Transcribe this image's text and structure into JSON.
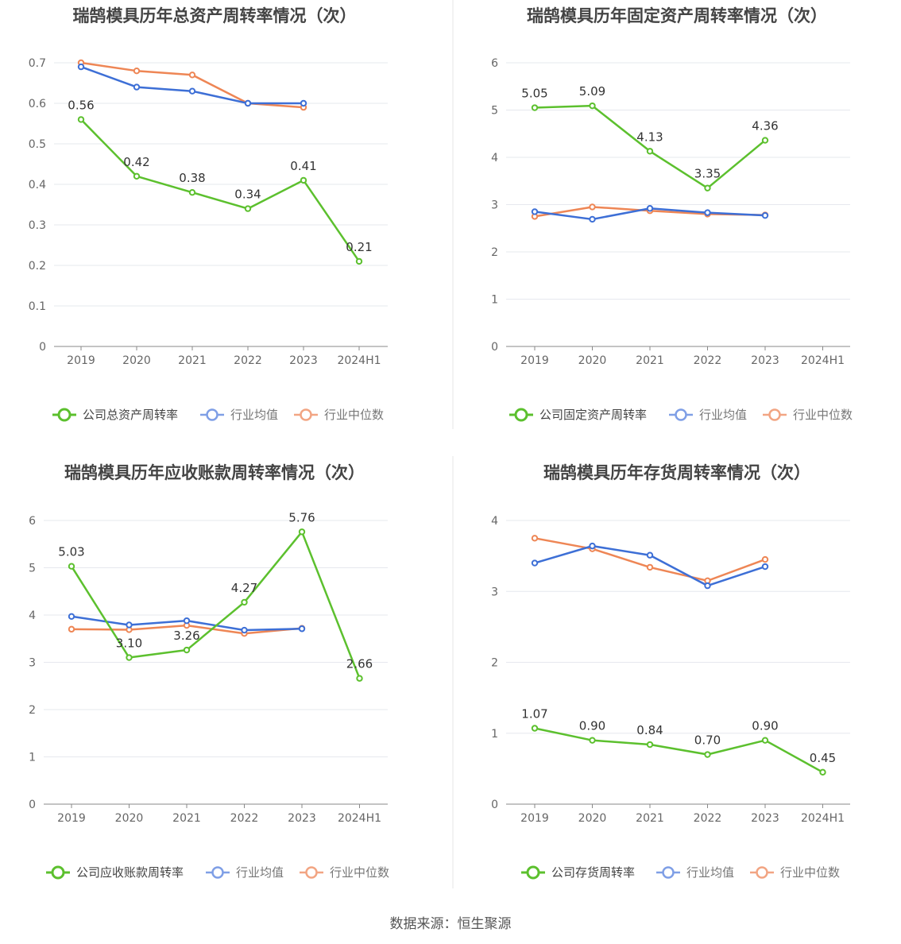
{
  "source": "数据来源：恒生聚源",
  "colors": {
    "company": "#5cc02e",
    "avg": "#3d6fd6",
    "median": "#ee8655",
    "grid": "#e6e8ee",
    "axis": "#666666",
    "text": "#333333",
    "divider": "#e6e6e6"
  },
  "chart_data": [
    {
      "type": "line",
      "title": "瑞鹄模具历年总资产周转率情况（次）",
      "categories": [
        "2019",
        "2020",
        "2021",
        "2022",
        "2023",
        "2024H1"
      ],
      "ylim": [
        0,
        0.7
      ],
      "yticks": [
        "0",
        "0.1",
        "0.2",
        "0.3",
        "0.4",
        "0.5",
        "0.6",
        "0.7"
      ],
      "series": [
        {
          "name": "公司总资产周转率",
          "values": [
            0.56,
            0.42,
            0.38,
            0.34,
            0.41,
            0.21
          ],
          "labels": [
            "0.56",
            "0.42",
            "0.38",
            "0.34",
            "0.41",
            "0.21"
          ]
        },
        {
          "name": "行业均值",
          "values": [
            0.69,
            0.64,
            0.63,
            0.6,
            0.6,
            null
          ]
        },
        {
          "name": "行业中位数",
          "values": [
            0.7,
            0.68,
            0.67,
            0.6,
            0.59,
            null
          ]
        }
      ],
      "legend": "bottom",
      "grid": true
    },
    {
      "type": "line",
      "title": "瑞鹄模具历年固定资产周转率情况（次）",
      "categories": [
        "2019",
        "2020",
        "2021",
        "2022",
        "2023",
        "2024H1"
      ],
      "ylim": [
        0,
        6
      ],
      "yticks": [
        "0",
        "1",
        "2",
        "3",
        "4",
        "5",
        "6"
      ],
      "series": [
        {
          "name": "公司固定资产周转率",
          "values": [
            5.05,
            5.09,
            4.13,
            3.35,
            4.36,
            null
          ],
          "labels": [
            "5.05",
            "5.09",
            "4.13",
            "3.35",
            "4.36",
            null
          ]
        },
        {
          "name": "行业均值",
          "values": [
            2.85,
            2.69,
            2.92,
            2.83,
            2.77,
            null
          ]
        },
        {
          "name": "行业中位数",
          "values": [
            2.75,
            2.95,
            2.87,
            2.8,
            2.78,
            null
          ]
        }
      ],
      "legend": "bottom",
      "grid": true
    },
    {
      "type": "line",
      "title": "瑞鹄模具历年应收账款周转率情况（次）",
      "categories": [
        "2019",
        "2020",
        "2021",
        "2022",
        "2023",
        "2024H1"
      ],
      "ylim": [
        0,
        6
      ],
      "yticks": [
        "0",
        "1",
        "2",
        "3",
        "4",
        "5",
        "6"
      ],
      "series": [
        {
          "name": "公司应收账款周转率",
          "values": [
            5.03,
            3.1,
            3.26,
            4.27,
            5.76,
            2.66
          ],
          "labels": [
            "5.03",
            "3.10",
            "3.26",
            "4.27",
            "5.76",
            "2.66"
          ]
        },
        {
          "name": "行业均值",
          "values": [
            3.97,
            3.79,
            3.88,
            3.68,
            3.71,
            null
          ]
        },
        {
          "name": "行业中位数",
          "values": [
            3.7,
            3.69,
            3.78,
            3.61,
            3.72,
            null
          ]
        }
      ],
      "legend": "bottom",
      "grid": true
    },
    {
      "type": "line",
      "title": "瑞鹄模具历年存货周转率情况（次）",
      "categories": [
        "2019",
        "2020",
        "2021",
        "2022",
        "2023",
        "2024H1"
      ],
      "ylim": [
        0,
        4
      ],
      "yticks": [
        "0",
        "1",
        "2",
        "3",
        "4"
      ],
      "series": [
        {
          "name": "公司存货周转率",
          "values": [
            1.07,
            0.9,
            0.84,
            0.7,
            0.9,
            0.45
          ],
          "labels": [
            "1.07",
            "0.90",
            "0.84",
            "0.70",
            "0.90",
            "0.45"
          ]
        },
        {
          "name": "行业均值",
          "values": [
            3.4,
            3.64,
            3.51,
            3.08,
            3.35,
            null
          ]
        },
        {
          "name": "行业中位数",
          "values": [
            3.75,
            3.6,
            3.34,
            3.15,
            3.45,
            null
          ]
        }
      ],
      "legend": "bottom",
      "grid": true
    }
  ]
}
